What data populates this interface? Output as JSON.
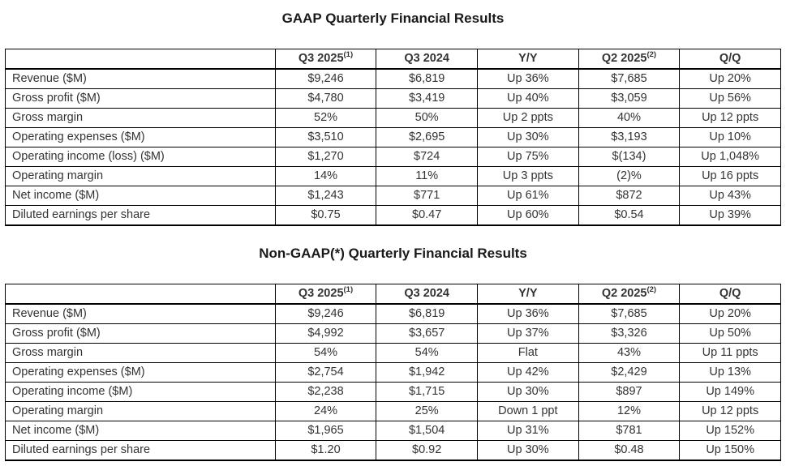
{
  "page": {
    "background_color": "#ffffff",
    "border_color": "#000000",
    "title_color": "#1a1a1a",
    "text_color": "#333333"
  },
  "tables": [
    {
      "title": "GAAP Quarterly Financial Results",
      "columns": [
        {
          "label": "",
          "sup": ""
        },
        {
          "label": "Q3 2025",
          "sup": "(1)"
        },
        {
          "label": "Q3 2024",
          "sup": ""
        },
        {
          "label": "Y/Y",
          "sup": ""
        },
        {
          "label": "Q2 2025",
          "sup": "(2)"
        },
        {
          "label": "Q/Q",
          "sup": ""
        }
      ],
      "rows": [
        {
          "label": "Revenue ($M)",
          "values": [
            "$9,246",
            "$6,819",
            "Up 36%",
            "$7,685",
            "Up 20%"
          ]
        },
        {
          "label": "Gross profit ($M)",
          "values": [
            "$4,780",
            "$3,419",
            "Up 40%",
            "$3,059",
            "Up 56%"
          ]
        },
        {
          "label": "Gross margin",
          "values": [
            "52%",
            "50%",
            "Up 2 ppts",
            "40%",
            "Up 12 ppts"
          ]
        },
        {
          "label": "Operating expenses ($M)",
          "values": [
            "$3,510",
            "$2,695",
            "Up 30%",
            "$3,193",
            "Up 10%"
          ]
        },
        {
          "label": "Operating income (loss) ($M)",
          "values": [
            "$1,270",
            "$724",
            "Up 75%",
            "$(134)",
            "Up 1,048%"
          ]
        },
        {
          "label": "Operating margin",
          "values": [
            "14%",
            "11%",
            "Up 3 ppts",
            "(2)%",
            "Up 16 ppts"
          ]
        },
        {
          "label": "Net income ($M)",
          "values": [
            "$1,243",
            "$771",
            "Up 61%",
            "$872",
            "Up 43%"
          ]
        },
        {
          "label": "Diluted earnings per share",
          "values": [
            "$0.75",
            "$0.47",
            "Up 60%",
            "$0.54",
            "Up 39%"
          ]
        }
      ]
    },
    {
      "title": "Non-GAAP(*) Quarterly Financial Results",
      "columns": [
        {
          "label": "",
          "sup": ""
        },
        {
          "label": "Q3 2025",
          "sup": "(1)"
        },
        {
          "label": "Q3 2024",
          "sup": ""
        },
        {
          "label": "Y/Y",
          "sup": ""
        },
        {
          "label": "Q2 2025",
          "sup": "(2)"
        },
        {
          "label": "Q/Q",
          "sup": ""
        }
      ],
      "rows": [
        {
          "label": "Revenue ($M)",
          "values": [
            "$9,246",
            "$6,819",
            "Up 36%",
            "$7,685",
            "Up 20%"
          ]
        },
        {
          "label": "Gross profit ($M)",
          "values": [
            "$4,992",
            "$3,657",
            "Up 37%",
            "$3,326",
            "Up 50%"
          ]
        },
        {
          "label": "Gross margin",
          "values": [
            "54%",
            "54%",
            "Flat",
            "43%",
            "Up 11 ppts"
          ]
        },
        {
          "label": "Operating expenses ($M)",
          "values": [
            "$2,754",
            "$1,942",
            "Up 42%",
            "$2,429",
            "Up 13%"
          ]
        },
        {
          "label": "Operating income ($M)",
          "values": [
            "$2,238",
            "$1,715",
            "Up 30%",
            "$897",
            "Up 149%"
          ]
        },
        {
          "label": "Operating margin",
          "values": [
            "24%",
            "25%",
            "Down 1 ppt",
            "12%",
            "Up 12 ppts"
          ]
        },
        {
          "label": "Net income ($M)",
          "values": [
            "$1,965",
            "$1,504",
            "Up 31%",
            "$781",
            "Up 152%"
          ]
        },
        {
          "label": "Diluted earnings per share",
          "values": [
            "$1.20",
            "$0.92",
            "Up 30%",
            "$0.48",
            "Up 150%"
          ]
        }
      ]
    }
  ]
}
